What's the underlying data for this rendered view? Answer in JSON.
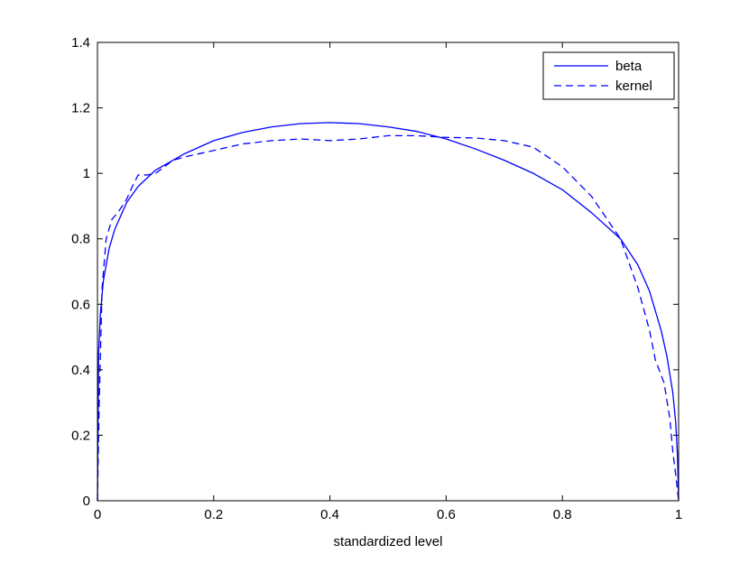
{
  "chart_data": {
    "type": "line",
    "title": "",
    "xlabel": "standardized level",
    "ylabel": "",
    "xlim": [
      0,
      1
    ],
    "ylim": [
      0,
      1.4
    ],
    "x_ticks": [
      0,
      0.2,
      0.4,
      0.6,
      0.8,
      1
    ],
    "x_tick_labels": [
      "0",
      "0.2",
      "0.4",
      "0.6",
      "0.8",
      "1"
    ],
    "y_ticks": [
      0,
      0.2,
      0.4,
      0.6,
      0.8,
      1,
      1.2,
      1.4
    ],
    "y_tick_labels": [
      "0",
      "0.2",
      "0.4",
      "0.6",
      "0.8",
      "1",
      "1.2",
      "1.4"
    ],
    "grid": false,
    "legend_position": "top-right",
    "series": [
      {
        "name": "beta",
        "style": "solid",
        "color": "#0000ff",
        "x": [
          0,
          0.002,
          0.005,
          0.01,
          0.02,
          0.03,
          0.05,
          0.07,
          0.1,
          0.15,
          0.2,
          0.25,
          0.3,
          0.35,
          0.4,
          0.45,
          0.5,
          0.55,
          0.6,
          0.65,
          0.7,
          0.75,
          0.8,
          0.85,
          0.9,
          0.93,
          0.95,
          0.97,
          0.98,
          0.99,
          0.995,
          0.998,
          1
        ],
        "y": [
          0,
          0.45,
          0.57,
          0.67,
          0.77,
          0.83,
          0.91,
          0.96,
          1.01,
          1.06,
          1.1,
          1.125,
          1.142,
          1.152,
          1.155,
          1.152,
          1.142,
          1.128,
          1.105,
          1.075,
          1.04,
          1.0,
          0.95,
          0.88,
          0.8,
          0.72,
          0.64,
          0.52,
          0.44,
          0.33,
          0.24,
          0.14,
          0
        ]
      },
      {
        "name": "kernel",
        "style": "dashed",
        "color": "#0000ff",
        "x": [
          0,
          0.003,
          0.008,
          0.015,
          0.025,
          0.035,
          0.05,
          0.06,
          0.07,
          0.085,
          0.1,
          0.13,
          0.15,
          0.2,
          0.25,
          0.3,
          0.35,
          0.4,
          0.45,
          0.5,
          0.55,
          0.6,
          0.65,
          0.7,
          0.75,
          0.8,
          0.85,
          0.9,
          0.93,
          0.95,
          0.96,
          0.975,
          0.985,
          0.99,
          0.995,
          1
        ],
        "y": [
          0,
          0.3,
          0.65,
          0.8,
          0.86,
          0.88,
          0.92,
          0.96,
          0.995,
          0.995,
          1.0,
          1.04,
          1.05,
          1.07,
          1.09,
          1.1,
          1.105,
          1.1,
          1.105,
          1.115,
          1.115,
          1.11,
          1.108,
          1.1,
          1.08,
          1.02,
          0.93,
          0.8,
          0.65,
          0.52,
          0.43,
          0.36,
          0.25,
          0.15,
          0.08,
          0
        ]
      }
    ]
  }
}
